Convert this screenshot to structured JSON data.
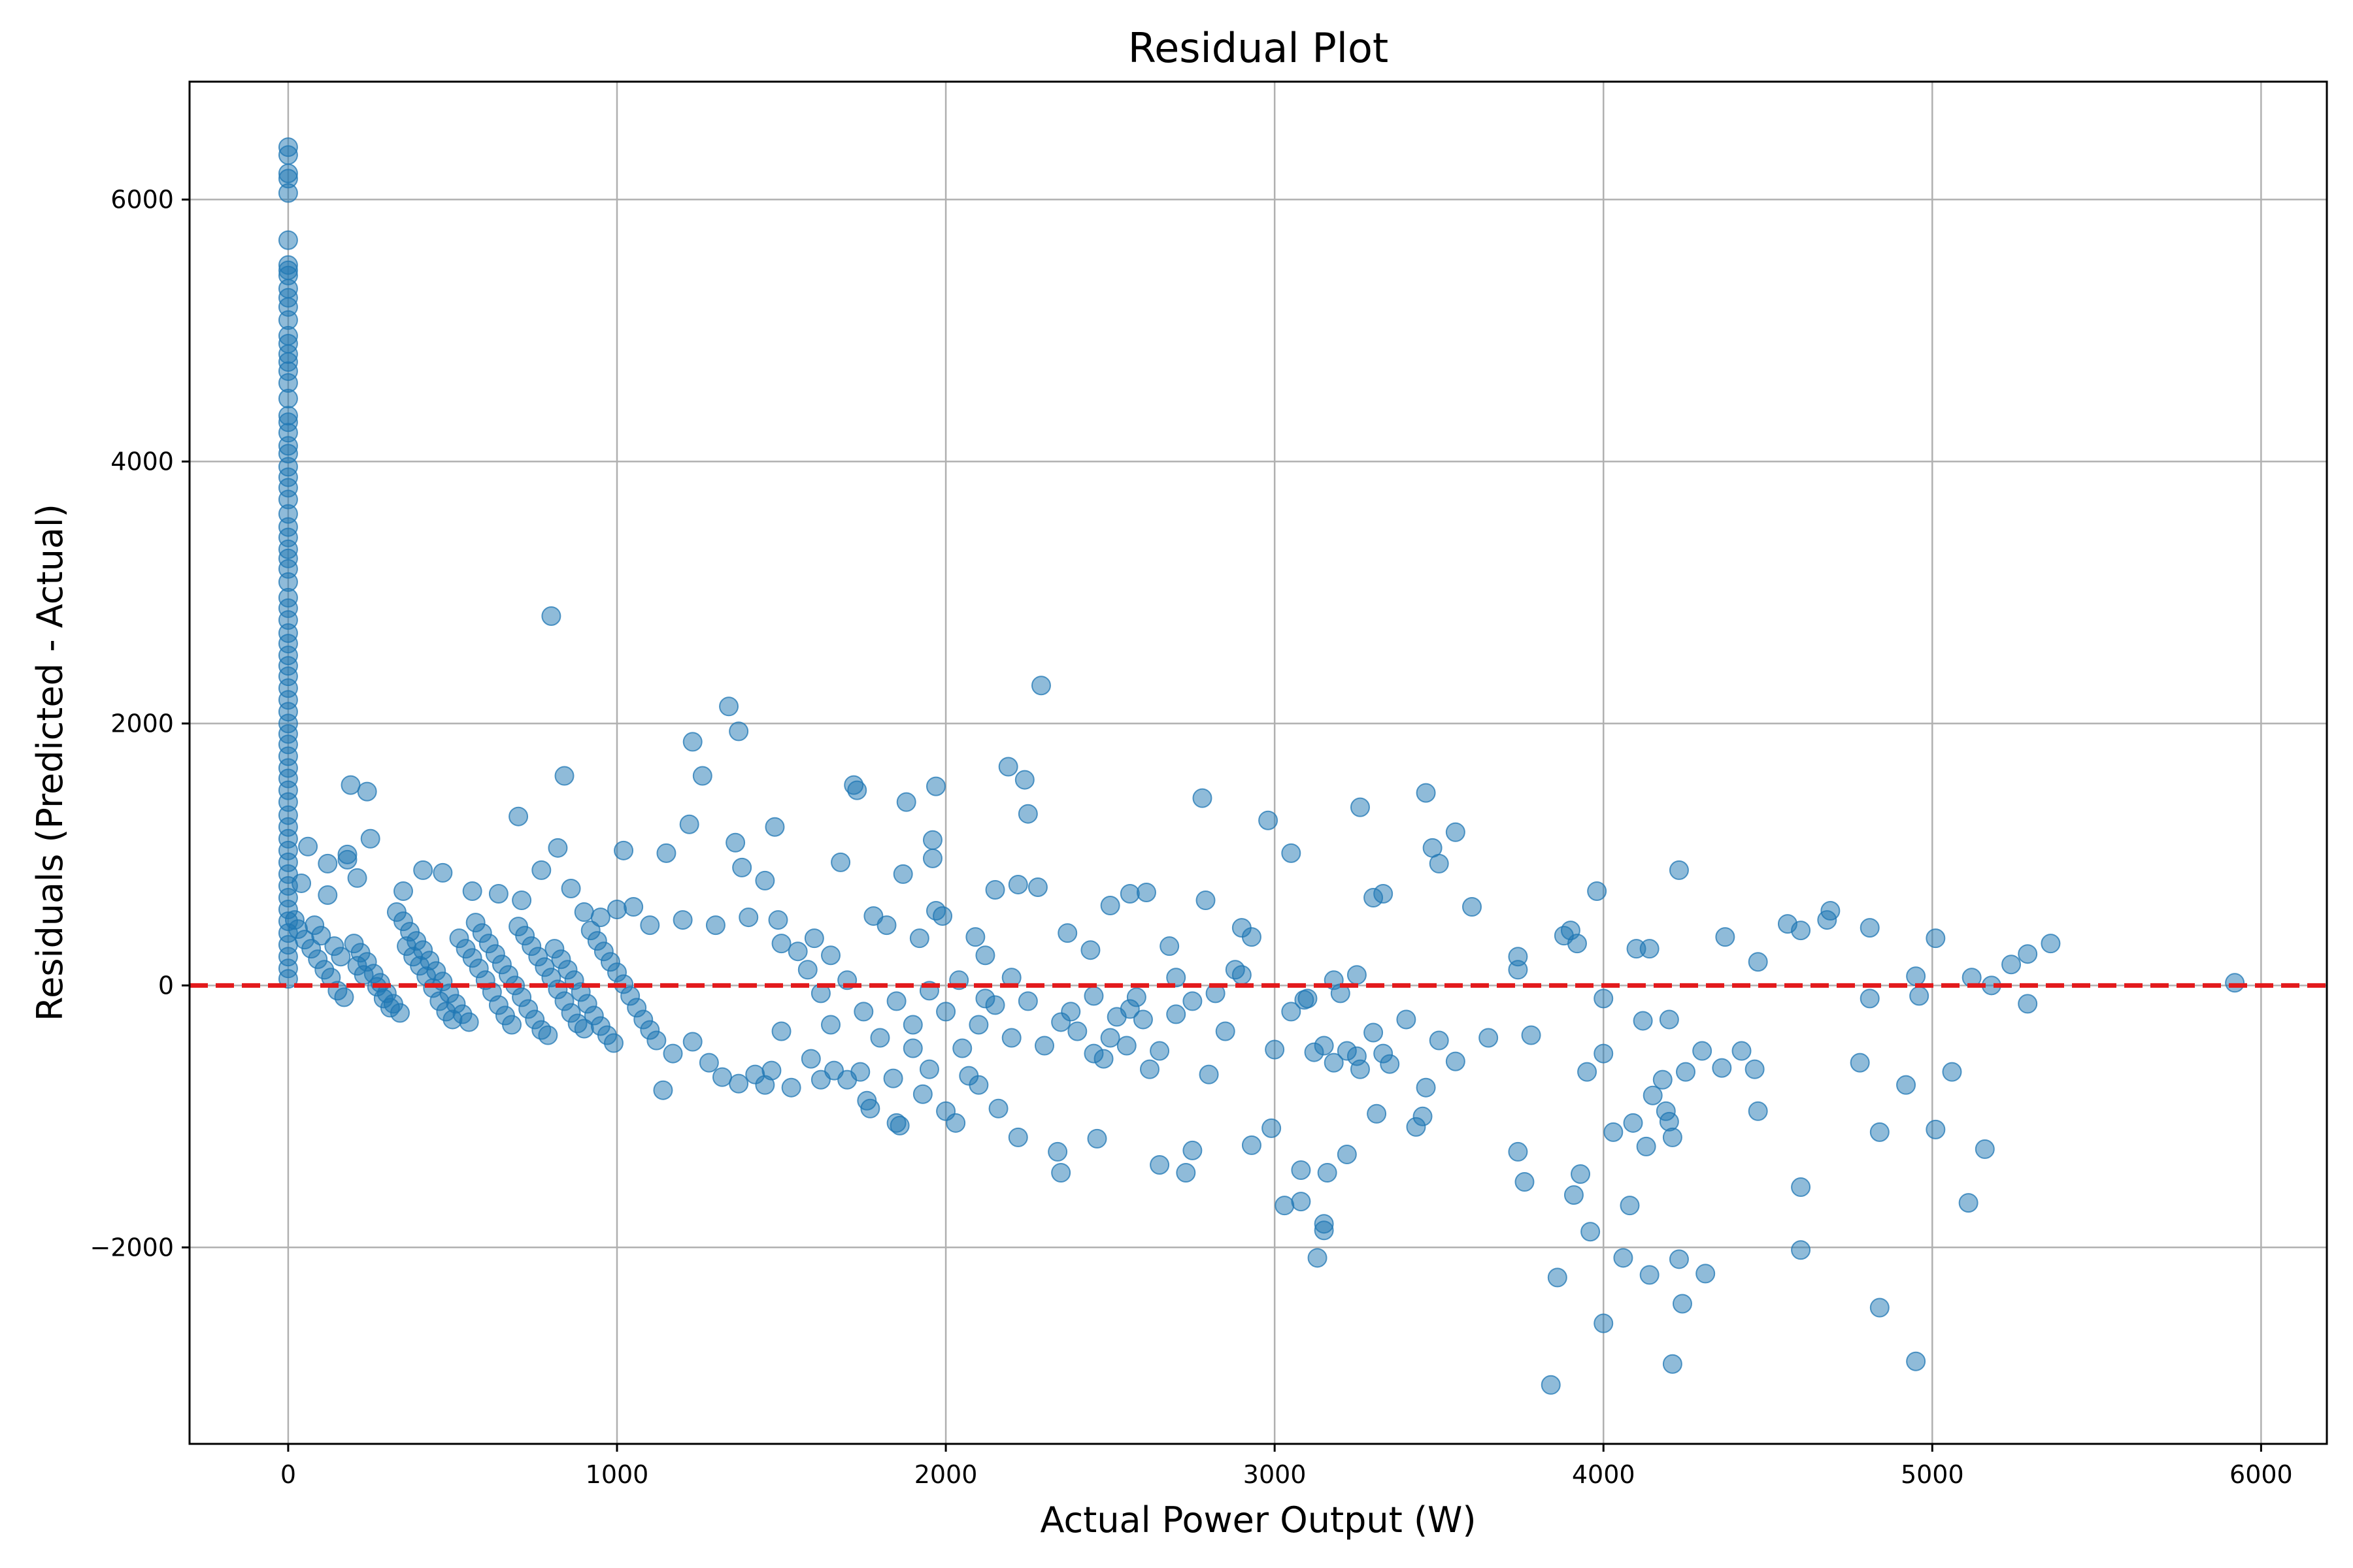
{
  "chart_data": {
    "type": "scatter",
    "title": "Residual Plot",
    "xlabel": "Actual Power Output (W)",
    "ylabel": "Residuals (Predicted - Actual)",
    "xlim": [
      -300,
      6200
    ],
    "ylim": [
      -3500,
      6900
    ],
    "xticks": [
      0,
      1000,
      2000,
      3000,
      4000,
      5000,
      6000
    ],
    "xtick_labels": [
      "0",
      "1000",
      "2000",
      "3000",
      "4000",
      "5000",
      "6000"
    ],
    "yticks": [
      -2000,
      0,
      2000,
      4000,
      6000
    ],
    "ytick_labels": [
      "−2000",
      "0",
      "2000",
      "4000",
      "6000"
    ],
    "grid": true,
    "reference_line": {
      "y": 0,
      "style": "dashed",
      "color": "#e31a1c"
    },
    "marker_color": "#1f77b4",
    "marker_alpha": 0.5,
    "points": [
      [
        0,
        6400
      ],
      [
        0,
        6340
      ],
      [
        0,
        6200
      ],
      [
        0,
        6160
      ],
      [
        0,
        6050
      ],
      [
        0,
        5690
      ],
      [
        0,
        5500
      ],
      [
        0,
        5460
      ],
      [
        0,
        5420
      ],
      [
        0,
        5320
      ],
      [
        0,
        5250
      ],
      [
        0,
        5180
      ],
      [
        0,
        5080
      ],
      [
        0,
        4960
      ],
      [
        0,
        4900
      ],
      [
        0,
        4820
      ],
      [
        0,
        4760
      ],
      [
        0,
        4690
      ],
      [
        0,
        4600
      ],
      [
        0,
        4480
      ],
      [
        0,
        4350
      ],
      [
        0,
        4300
      ],
      [
        0,
        4220
      ],
      [
        0,
        4120
      ],
      [
        0,
        4060
      ],
      [
        0,
        3960
      ],
      [
        0,
        3880
      ],
      [
        0,
        3800
      ],
      [
        0,
        3710
      ],
      [
        0,
        3600
      ],
      [
        0,
        3500
      ],
      [
        0,
        3420
      ],
      [
        0,
        3330
      ],
      [
        0,
        3260
      ],
      [
        0,
        3180
      ],
      [
        0,
        3080
      ],
      [
        0,
        2960
      ],
      [
        0,
        2880
      ],
      [
        0,
        2790
      ],
      [
        0,
        2690
      ],
      [
        0,
        2610
      ],
      [
        0,
        2520
      ],
      [
        0,
        2440
      ],
      [
        0,
        2360
      ],
      [
        0,
        2270
      ],
      [
        0,
        2180
      ],
      [
        0,
        2090
      ],
      [
        0,
        2000
      ],
      [
        0,
        1920
      ],
      [
        0,
        1840
      ],
      [
        0,
        1750
      ],
      [
        0,
        1660
      ],
      [
        0,
        1580
      ],
      [
        0,
        1490
      ],
      [
        0,
        1400
      ],
      [
        0,
        1300
      ],
      [
        0,
        1210
      ],
      [
        0,
        1120
      ],
      [
        0,
        1030
      ],
      [
        0,
        940
      ],
      [
        0,
        850
      ],
      [
        0,
        760
      ],
      [
        0,
        670
      ],
      [
        0,
        580
      ],
      [
        0,
        490
      ],
      [
        0,
        400
      ],
      [
        0,
        310
      ],
      [
        0,
        220
      ],
      [
        0,
        130
      ],
      [
        0,
        50
      ],
      [
        40,
        780
      ],
      [
        60,
        1060
      ],
      [
        120,
        930
      ],
      [
        180,
        960
      ],
      [
        180,
        1000
      ],
      [
        190,
        1530
      ],
      [
        240,
        1480
      ],
      [
        250,
        1120
      ],
      [
        20,
        500
      ],
      [
        30,
        430
      ],
      [
        50,
        350
      ],
      [
        70,
        280
      ],
      [
        90,
        200
      ],
      [
        110,
        120
      ],
      [
        130,
        60
      ],
      [
        150,
        -40
      ],
      [
        170,
        -90
      ],
      [
        200,
        320
      ],
      [
        220,
        250
      ],
      [
        240,
        180
      ],
      [
        260,
        90
      ],
      [
        280,
        20
      ],
      [
        300,
        -60
      ],
      [
        320,
        -140
      ],
      [
        340,
        -210
      ],
      [
        360,
        300
      ],
      [
        380,
        220
      ],
      [
        400,
        150
      ],
      [
        420,
        70
      ],
      [
        440,
        -20
      ],
      [
        460,
        -120
      ],
      [
        480,
        -200
      ],
      [
        500,
        -260
      ],
      [
        520,
        360
      ],
      [
        540,
        280
      ],
      [
        560,
        210
      ],
      [
        580,
        130
      ],
      [
        600,
        40
      ],
      [
        620,
        -50
      ],
      [
        640,
        -150
      ],
      [
        660,
        -230
      ],
      [
        680,
        -300
      ],
      [
        700,
        450
      ],
      [
        720,
        380
      ],
      [
        740,
        300
      ],
      [
        760,
        220
      ],
      [
        780,
        140
      ],
      [
        800,
        60
      ],
      [
        820,
        -30
      ],
      [
        840,
        -120
      ],
      [
        860,
        -210
      ],
      [
        880,
        -290
      ],
      [
        900,
        -330
      ],
      [
        920,
        420
      ],
      [
        940,
        340
      ],
      [
        960,
        260
      ],
      [
        980,
        180
      ],
      [
        1000,
        100
      ],
      [
        1020,
        10
      ],
      [
        1040,
        -80
      ],
      [
        1060,
        -170
      ],
      [
        1080,
        -260
      ],
      [
        1100,
        -340
      ],
      [
        1120,
        -420
      ],
      [
        80,
        460
      ],
      [
        100,
        380
      ],
      [
        140,
        300
      ],
      [
        160,
        220
      ],
      [
        210,
        150
      ],
      [
        230,
        80
      ],
      [
        270,
        -10
      ],
      [
        290,
        -100
      ],
      [
        310,
        -170
      ],
      [
        330,
        560
      ],
      [
        350,
        490
      ],
      [
        370,
        410
      ],
      [
        390,
        340
      ],
      [
        410,
        270
      ],
      [
        430,
        190
      ],
      [
        450,
        110
      ],
      [
        470,
        30
      ],
      [
        490,
        -60
      ],
      [
        510,
        -140
      ],
      [
        530,
        -220
      ],
      [
        550,
        -280
      ],
      [
        570,
        480
      ],
      [
        590,
        400
      ],
      [
        610,
        320
      ],
      [
        630,
        240
      ],
      [
        650,
        160
      ],
      [
        670,
        80
      ],
      [
        690,
        0
      ],
      [
        710,
        -90
      ],
      [
        730,
        -180
      ],
      [
        750,
        -260
      ],
      [
        770,
        -340
      ],
      [
        790,
        -380
      ],
      [
        810,
        280
      ],
      [
        830,
        200
      ],
      [
        850,
        120
      ],
      [
        870,
        40
      ],
      [
        890,
        -50
      ],
      [
        910,
        -140
      ],
      [
        930,
        -230
      ],
      [
        950,
        -310
      ],
      [
        970,
        -380
      ],
      [
        990,
        -440
      ],
      [
        120,
        690
      ],
      [
        210,
        820
      ],
      [
        350,
        720
      ],
      [
        410,
        880
      ],
      [
        470,
        860
      ],
      [
        560,
        720
      ],
      [
        640,
        700
      ],
      [
        700,
        1290
      ],
      [
        710,
        650
      ],
      [
        770,
        880
      ],
      [
        800,
        2820
      ],
      [
        820,
        1050
      ],
      [
        840,
        1600
      ],
      [
        860,
        740
      ],
      [
        900,
        560
      ],
      [
        950,
        520
      ],
      [
        1000,
        580
      ],
      [
        1020,
        1030
      ],
      [
        1050,
        600
      ],
      [
        1100,
        460
      ],
      [
        1150,
        1010
      ],
      [
        1200,
        500
      ],
      [
        1220,
        1230
      ],
      [
        1230,
        1860
      ],
      [
        1260,
        1600
      ],
      [
        1300,
        460
      ],
      [
        1340,
        2130
      ],
      [
        1360,
        1090
      ],
      [
        1370,
        1940
      ],
      [
        1380,
        900
      ],
      [
        1400,
        520
      ],
      [
        1450,
        800
      ],
      [
        1480,
        1210
      ],
      [
        1490,
        500
      ],
      [
        1500,
        320
      ],
      [
        1550,
        260
      ],
      [
        1600,
        360
      ],
      [
        1650,
        230
      ],
      [
        1680,
        940
      ],
      [
        1720,
        1530
      ],
      [
        1730,
        1490
      ],
      [
        1780,
        530
      ],
      [
        1820,
        460
      ],
      [
        1870,
        850
      ],
      [
        1880,
        1400
      ],
      [
        1920,
        360
      ],
      [
        1960,
        1110
      ],
      [
        1960,
        970
      ],
      [
        1970,
        1520
      ],
      [
        1970,
        570
      ],
      [
        1990,
        530
      ],
      [
        2090,
        370
      ],
      [
        2120,
        230
      ],
      [
        2150,
        730
      ],
      [
        2190,
        1670
      ],
      [
        2220,
        770
      ],
      [
        2240,
        1570
      ],
      [
        2250,
        1310
      ],
      [
        2280,
        750
      ],
      [
        2290,
        2290
      ],
      [
        2370,
        400
      ],
      [
        2440,
        270
      ],
      [
        2500,
        610
      ],
      [
        2560,
        700
      ],
      [
        2610,
        710
      ],
      [
        2680,
        300
      ],
      [
        2780,
        1430
      ],
      [
        2790,
        650
      ],
      [
        2900,
        440
      ],
      [
        2930,
        370
      ],
      [
        2980,
        1260
      ],
      [
        3050,
        1010
      ],
      [
        3260,
        1360
      ],
      [
        3300,
        670
      ],
      [
        3330,
        700
      ],
      [
        3460,
        1470
      ],
      [
        3480,
        1050
      ],
      [
        3500,
        930
      ],
      [
        3550,
        1170
      ],
      [
        3600,
        600
      ],
      [
        3740,
        220
      ],
      [
        3880,
        380
      ],
      [
        3900,
        420
      ],
      [
        3980,
        720
      ],
      [
        4100,
        280
      ],
      [
        4140,
        280
      ],
      [
        4230,
        880
      ],
      [
        4370,
        370
      ],
      [
        4470,
        180
      ],
      [
        4560,
        470
      ],
      [
        4600,
        420
      ],
      [
        4680,
        500
      ],
      [
        4690,
        570
      ],
      [
        4810,
        440
      ],
      [
        4950,
        70
      ],
      [
        5010,
        360
      ],
      [
        5120,
        60
      ],
      [
        5180,
        0
      ],
      [
        5240,
        160
      ],
      [
        5290,
        240
      ],
      [
        5360,
        320
      ],
      [
        5920,
        20
      ],
      [
        1140,
        -800
      ],
      [
        1170,
        -520
      ],
      [
        1230,
        -430
      ],
      [
        1280,
        -590
      ],
      [
        1320,
        -700
      ],
      [
        1370,
        -750
      ],
      [
        1420,
        -680
      ],
      [
        1450,
        -760
      ],
      [
        1470,
        -650
      ],
      [
        1530,
        -780
      ],
      [
        1590,
        -560
      ],
      [
        1620,
        -720
      ],
      [
        1660,
        -650
      ],
      [
        1700,
        -720
      ],
      [
        1740,
        -660
      ],
      [
        1760,
        -880
      ],
      [
        1770,
        -940
      ],
      [
        1840,
        -710
      ],
      [
        1850,
        -1050
      ],
      [
        1860,
        -1070
      ],
      [
        1900,
        -480
      ],
      [
        1930,
        -830
      ],
      [
        1950,
        -640
      ],
      [
        2000,
        -960
      ],
      [
        2030,
        -1050
      ],
      [
        2070,
        -690
      ],
      [
        2100,
        -760
      ],
      [
        2160,
        -940
      ],
      [
        2220,
        -1160
      ],
      [
        2340,
        -1270
      ],
      [
        2350,
        -1430
      ],
      [
        2460,
        -1170
      ],
      [
        2650,
        -1370
      ],
      [
        2730,
        -1430
      ],
      [
        2750,
        -1260
      ],
      [
        2800,
        -680
      ],
      [
        2930,
        -1220
      ],
      [
        2990,
        -1090
      ],
      [
        3030,
        -1680
      ],
      [
        3080,
        -1410
      ],
      [
        3080,
        -1650
      ],
      [
        3130,
        -2080
      ],
      [
        3150,
        -1820
      ],
      [
        3150,
        -1870
      ],
      [
        3160,
        -1430
      ],
      [
        3220,
        -1290
      ],
      [
        3310,
        -980
      ],
      [
        3430,
        -1080
      ],
      [
        3450,
        -1000
      ],
      [
        3460,
        -780
      ],
      [
        3740,
        -1270
      ],
      [
        3760,
        -1500
      ],
      [
        3840,
        -3050
      ],
      [
        3860,
        -2230
      ],
      [
        3910,
        -1600
      ],
      [
        3930,
        -1440
      ],
      [
        3960,
        -1880
      ],
      [
        4000,
        -2580
      ],
      [
        4030,
        -1120
      ],
      [
        4060,
        -2080
      ],
      [
        4080,
        -1680
      ],
      [
        4090,
        -1050
      ],
      [
        4130,
        -1230
      ],
      [
        4140,
        -2210
      ],
      [
        4190,
        -960
      ],
      [
        4200,
        -1040
      ],
      [
        4210,
        -2890
      ],
      [
        4210,
        -1160
      ],
      [
        4230,
        -2090
      ],
      [
        4240,
        -2430
      ],
      [
        4310,
        -2200
      ],
      [
        4470,
        -960
      ],
      [
        4600,
        -1540
      ],
      [
        4600,
        -2020
      ],
      [
        4840,
        -1120
      ],
      [
        4840,
        -2460
      ],
      [
        4950,
        -2870
      ],
      [
        4920,
        -760
      ],
      [
        5010,
        -1100
      ],
      [
        5060,
        -660
      ],
      [
        5110,
        -1660
      ],
      [
        5160,
        -1250
      ],
      [
        1500,
        -350
      ],
      [
        1650,
        -300
      ],
      [
        1750,
        -200
      ],
      [
        1800,
        -400
      ],
      [
        1900,
        -300
      ],
      [
        2000,
        -200
      ],
      [
        2050,
        -480
      ],
      [
        2100,
        -300
      ],
      [
        2150,
        -150
      ],
      [
        2200,
        -400
      ],
      [
        2250,
        -120
      ],
      [
        2300,
        -460
      ],
      [
        2350,
        -280
      ],
      [
        2400,
        -350
      ],
      [
        2450,
        -520
      ],
      [
        2500,
        -400
      ],
      [
        2550,
        -460
      ],
      [
        2600,
        -260
      ],
      [
        2620,
        -640
      ],
      [
        2650,
        -500
      ],
      [
        2700,
        -220
      ],
      [
        2750,
        -120
      ],
      [
        2850,
        -350
      ],
      [
        2900,
        80
      ],
      [
        3000,
        -490
      ],
      [
        3050,
        -200
      ],
      [
        3100,
        -100
      ],
      [
        3150,
        -460
      ],
      [
        3200,
        -60
      ],
      [
        3250,
        -540
      ],
      [
        3300,
        -360
      ],
      [
        3350,
        -600
      ],
      [
        3400,
        -260
      ],
      [
        3500,
        -420
      ],
      [
        3550,
        -580
      ],
      [
        3650,
        -400
      ],
      [
        3780,
        -380
      ],
      [
        3950,
        -660
      ],
      [
        4000,
        -520
      ],
      [
        4000,
        -100
      ],
      [
        4120,
        -270
      ],
      [
        4150,
        -840
      ],
      [
        4180,
        -720
      ],
      [
        4200,
        -260
      ],
      [
        4250,
        -660
      ],
      [
        4300,
        -500
      ],
      [
        4360,
        -630
      ],
      [
        4420,
        -500
      ],
      [
        4460,
        -640
      ],
      [
        4780,
        -590
      ],
      [
        4810,
        -100
      ],
      [
        4960,
        -80
      ],
      [
        5290,
        -140
      ],
      [
        3090,
        -110
      ],
      [
        3120,
        -510
      ],
      [
        3180,
        -590
      ],
      [
        3220,
        -500
      ],
      [
        3260,
        -640
      ],
      [
        3330,
        -520
      ],
      [
        2450,
        -80
      ],
      [
        2520,
        -240
      ],
      [
        2580,
        -90
      ],
      [
        1580,
        120
      ],
      [
        1620,
        -60
      ],
      [
        1700,
        40
      ],
      [
        1850,
        -120
      ],
      [
        1950,
        -40
      ],
      [
        2040,
        40
      ],
      [
        2120,
        -100
      ],
      [
        2200,
        60
      ],
      [
        2380,
        -200
      ],
      [
        2480,
        -560
      ],
      [
        2560,
        -180
      ],
      [
        2700,
        60
      ],
      [
        2820,
        -60
      ],
      [
        2880,
        120
      ],
      [
        3180,
        40
      ],
      [
        3250,
        80
      ],
      [
        3740,
        120
      ],
      [
        3920,
        320
      ]
    ]
  }
}
